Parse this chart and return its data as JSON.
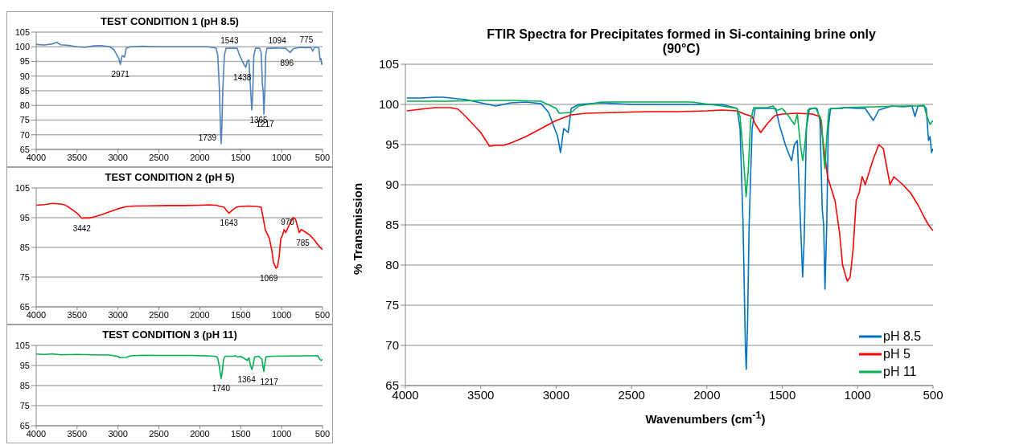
{
  "chart_data": [
    {
      "type": "line",
      "title": "TEST CONDITION 1 (pH 8.5)",
      "xlim": [
        4000,
        500
      ],
      "xticks": [
        4000,
        3500,
        3000,
        2500,
        2000,
        1500,
        1000,
        500
      ],
      "ylim": [
        65,
        105
      ],
      "yticks": [
        65,
        70,
        75,
        80,
        85,
        90,
        95,
        100,
        105
      ],
      "grid": "y",
      "series": [
        {
          "color": "#4f81bd",
          "x": [
            4000,
            3900,
            3800,
            3750,
            3700,
            3600,
            3500,
            3400,
            3300,
            3200,
            3100,
            3050,
            3000,
            2990,
            2971,
            2950,
            2920,
            2900,
            2850,
            2700,
            2500,
            2300,
            2100,
            2000,
            1900,
            1800,
            1780,
            1760,
            1745,
            1739,
            1730,
            1720,
            1700,
            1680,
            1600,
            1543,
            1520,
            1480,
            1460,
            1438,
            1420,
            1400,
            1385,
            1365,
            1355,
            1340,
            1320,
            1270,
            1250,
            1235,
            1225,
            1217,
            1205,
            1195,
            1180,
            1100,
            1094,
            1000,
            950,
            896,
            860,
            775,
            700,
            640,
            620,
            600,
            560,
            545,
            530,
            520,
            510,
            500
          ],
          "values": [
            100.8,
            100.6,
            101,
            101.5,
            100.7,
            100.5,
            100,
            99.8,
            100.3,
            100.4,
            100,
            99,
            96.5,
            96,
            94,
            97,
            96.5,
            99.5,
            100,
            100.2,
            100,
            100,
            100,
            100,
            100,
            99.5,
            97,
            85,
            70,
            67,
            73,
            85,
            97,
            99.5,
            99.5,
            99.5,
            97.5,
            95,
            94,
            93,
            95,
            95.5,
            88,
            78.5,
            83,
            97,
            99.5,
            99.5,
            98,
            87,
            84.8,
            77,
            85,
            97,
            99.5,
            99.5,
            99.6,
            99.5,
            99.5,
            98,
            99.3,
            99.8,
            99.7,
            99.8,
            98.5,
            99.8,
            99.8,
            99.5,
            95.5,
            96,
            94,
            94.5
          ]
        }
      ],
      "annotations": [
        {
          "text": "2971",
          "x": 2971,
          "y": 94
        },
        {
          "text": "1543",
          "x": 1543,
          "y": 99.5
        },
        {
          "text": "1438",
          "x": 1438,
          "y": 93
        },
        {
          "text": "1365",
          "x": 1365,
          "y": 78.5
        },
        {
          "text": "1217",
          "x": 1217,
          "y": 77
        },
        {
          "text": "1739",
          "x": 1739,
          "y": 67
        },
        {
          "text": "1094",
          "x": 1094,
          "y": 99.6
        },
        {
          "text": "775",
          "x": 775,
          "y": 99.8
        },
        {
          "text": "896",
          "x": 896,
          "y": 98
        }
      ]
    },
    {
      "type": "line",
      "title": "TEST CONDITION 2 (pH 5)",
      "xlim": [
        4000,
        500
      ],
      "xticks": [
        4000,
        3500,
        3000,
        2500,
        2000,
        1500,
        1000,
        500
      ],
      "ylim": [
        65,
        105
      ],
      "yticks": [
        65,
        75,
        85,
        95,
        105
      ],
      "grid": "y",
      "series": [
        {
          "color": "#ff0000",
          "x": [
            4000,
            3900,
            3800,
            3700,
            3650,
            3600,
            3500,
            3442,
            3400,
            3350,
            3300,
            3200,
            3100,
            3000,
            2900,
            2800,
            2600,
            2400,
            2200,
            2000,
            1900,
            1800,
            1750,
            1700,
            1680,
            1643,
            1600,
            1550,
            1500,
            1400,
            1300,
            1250,
            1220,
            1200,
            1150,
            1120,
            1100,
            1069,
            1050,
            1030,
            1010,
            990,
            970,
            950,
            900,
            860,
            830,
            800,
            785,
            760,
            700,
            650,
            600,
            560,
            530,
            510,
            500
          ],
          "values": [
            99.2,
            99.4,
            99.8,
            99.6,
            99.3,
            98.5,
            96.5,
            94.8,
            94.9,
            94.9,
            95.2,
            96,
            97,
            98,
            98.7,
            98.9,
            99,
            99.1,
            99.1,
            99.2,
            99.3,
            99.2,
            98.8,
            98.5,
            97.6,
            96.5,
            97.6,
            98.6,
            98.8,
            98.9,
            98.8,
            98.5,
            94,
            91,
            88,
            84,
            80,
            78,
            78.5,
            82,
            88,
            89,
            91,
            90,
            93,
            95,
            94.5,
            91.5,
            90,
            91,
            90,
            89,
            87.5,
            86,
            85,
            84.5,
            84.3
          ]
        }
      ],
      "annotations": [
        {
          "text": "3442",
          "x": 3442,
          "y": 94.8
        },
        {
          "text": "1643",
          "x": 1643,
          "y": 96.5
        },
        {
          "text": "1069",
          "x": 1069,
          "y": 78
        },
        {
          "text": "970",
          "x": 970,
          "y": 91
        },
        {
          "text": "785",
          "x": 785,
          "y": 90
        }
      ]
    },
    {
      "type": "line",
      "title": "TEST CONDITION 3 (pH 11)",
      "xlim": [
        4000,
        500
      ],
      "xticks": [
        4000,
        3500,
        3000,
        2500,
        2000,
        1500,
        1000,
        500
      ],
      "ylim": [
        65,
        105
      ],
      "yticks": [
        65,
        75,
        85,
        95,
        105
      ],
      "grid": "y",
      "series": [
        {
          "color": "#00b050",
          "x": [
            4000,
            3900,
            3800,
            3700,
            3500,
            3300,
            3100,
            3000,
            2980,
            2900,
            2850,
            2700,
            2500,
            2300,
            2100,
            1900,
            1800,
            1780,
            1760,
            1740,
            1725,
            1710,
            1690,
            1600,
            1560,
            1543,
            1500,
            1460,
            1420,
            1400,
            1380,
            1364,
            1350,
            1330,
            1280,
            1240,
            1225,
            1217,
            1205,
            1190,
            1100,
            900,
            700,
            600,
            560,
            540,
            520,
            500
          ],
          "values": [
            100.7,
            100.5,
            100.8,
            100.3,
            100.5,
            100.3,
            100.2,
            99.5,
            98.9,
            99,
            99.8,
            100.1,
            100,
            100,
            100,
            99.8,
            99.5,
            98.5,
            94,
            88.5,
            92,
            98,
            99.6,
            99.6,
            99.8,
            99.2,
            99.5,
            98.6,
            97.5,
            98.8,
            95,
            93,
            95,
            99.3,
            99.6,
            98,
            93.5,
            92,
            96,
            99.4,
            99.6,
            99.7,
            99.8,
            99.8,
            99.9,
            98.5,
            97.5,
            98
          ]
        }
      ],
      "annotations": [
        {
          "text": "1740",
          "x": 1740,
          "y": 88.5
        },
        {
          "text": "1364",
          "x": 1364,
          "y": 93
        },
        {
          "text": "1217",
          "x": 1217,
          "y": 92
        }
      ]
    },
    {
      "type": "line",
      "title": "FTIR Spectra for Precipitates formed in Si-containing brine only",
      "subtitle": "(90°C)",
      "xlabel": "Wavenumbers (cm$^{-1}$)",
      "ylabel": "% Transmission",
      "xlim": [
        4000,
        500
      ],
      "xticks": [
        4000,
        3500,
        3000,
        2500,
        2000,
        1500,
        1000,
        500
      ],
      "ylim": [
        65,
        105
      ],
      "yticks": [
        65,
        70,
        75,
        80,
        85,
        90,
        95,
        100,
        105
      ],
      "grid": "y",
      "legend": "bottom right",
      "series": [
        {
          "name": "pH 8.5",
          "color": "#0070c0",
          "x": [
            3990,
            3900,
            3800,
            3750,
            3700,
            3600,
            3500,
            3400,
            3300,
            3200,
            3100,
            3050,
            3000,
            2990,
            2971,
            2950,
            2920,
            2900,
            2850,
            2700,
            2500,
            2300,
            2100,
            2000,
            1900,
            1800,
            1780,
            1760,
            1745,
            1739,
            1730,
            1720,
            1700,
            1680,
            1600,
            1543,
            1520,
            1480,
            1460,
            1438,
            1420,
            1400,
            1385,
            1365,
            1355,
            1340,
            1320,
            1270,
            1250,
            1235,
            1225,
            1217,
            1205,
            1195,
            1180,
            1100,
            1094,
            1000,
            950,
            896,
            860,
            775,
            700,
            640,
            620,
            600,
            560,
            545,
            530,
            520,
            510,
            500
          ],
          "values": [
            100.8,
            100.8,
            100.9,
            100.9,
            100.8,
            100.6,
            100.2,
            99.8,
            100.2,
            100.3,
            100.1,
            99,
            96.5,
            96,
            94,
            97,
            96.5,
            99.5,
            100,
            100.2,
            100,
            100,
            100,
            100,
            100,
            99.5,
            97,
            85,
            70,
            67,
            73,
            85,
            97,
            99.5,
            99.5,
            99.5,
            97.5,
            95,
            94,
            93,
            95,
            95.5,
            88,
            78.5,
            83,
            97,
            99.5,
            99.5,
            98,
            87,
            84.8,
            77,
            85,
            97,
            99.5,
            99.5,
            99.6,
            99.5,
            99.5,
            98,
            99.3,
            99.8,
            99.7,
            99.8,
            98.5,
            99.8,
            99.8,
            99.5,
            95.5,
            96,
            94,
            94.5
          ]
        },
        {
          "name": "pH 5",
          "color": "#ff0000",
          "x": [
            3990,
            3900,
            3800,
            3700,
            3650,
            3600,
            3500,
            3442,
            3400,
            3350,
            3300,
            3200,
            3100,
            3000,
            2900,
            2800,
            2600,
            2400,
            2200,
            2000,
            1900,
            1800,
            1750,
            1700,
            1680,
            1643,
            1600,
            1550,
            1500,
            1400,
            1300,
            1250,
            1220,
            1200,
            1150,
            1120,
            1100,
            1069,
            1050,
            1030,
            1010,
            990,
            970,
            950,
            900,
            860,
            830,
            800,
            785,
            760,
            700,
            650,
            600,
            560,
            530,
            510,
            500
          ],
          "values": [
            99.2,
            99.4,
            99.6,
            99.6,
            99.4,
            98.5,
            96.5,
            94.8,
            94.9,
            94.9,
            95.2,
            96,
            97,
            98,
            98.7,
            98.9,
            99,
            99.1,
            99.1,
            99.2,
            99.3,
            99.2,
            98.8,
            98.5,
            97.6,
            96.5,
            97.6,
            98.6,
            98.8,
            98.9,
            98.8,
            98.5,
            94,
            91,
            88,
            84,
            80,
            78,
            78.5,
            82,
            88,
            89,
            91,
            90,
            93,
            95,
            94.5,
            91.5,
            90,
            91,
            90,
            89,
            87.5,
            86,
            85,
            84.5,
            84.3
          ]
        },
        {
          "name": "pH 11",
          "color": "#00b050",
          "x": [
            3990,
            3900,
            3800,
            3700,
            3500,
            3300,
            3100,
            3000,
            2980,
            2900,
            2850,
            2700,
            2500,
            2300,
            2100,
            1900,
            1800,
            1780,
            1760,
            1740,
            1725,
            1710,
            1690,
            1600,
            1560,
            1543,
            1500,
            1460,
            1420,
            1400,
            1380,
            1364,
            1350,
            1330,
            1280,
            1240,
            1225,
            1217,
            1205,
            1190,
            1100,
            900,
            700,
            600,
            560,
            540,
            520,
            500
          ],
          "values": [
            100.4,
            100.4,
            100.4,
            100.4,
            100.5,
            100.5,
            100.4,
            99.5,
            98.9,
            99,
            99.8,
            100.3,
            100.3,
            100.3,
            100.3,
            99.8,
            99.5,
            98.5,
            94,
            88.5,
            92,
            98,
            99.6,
            99.6,
            99.8,
            99.2,
            99.5,
            98.6,
            97.5,
            98.8,
            95,
            93,
            95,
            99.3,
            99.6,
            98,
            93.5,
            92,
            96,
            99.4,
            99.6,
            99.7,
            99.8,
            99.8,
            99.9,
            98.5,
            97.5,
            98
          ]
        }
      ]
    }
  ]
}
